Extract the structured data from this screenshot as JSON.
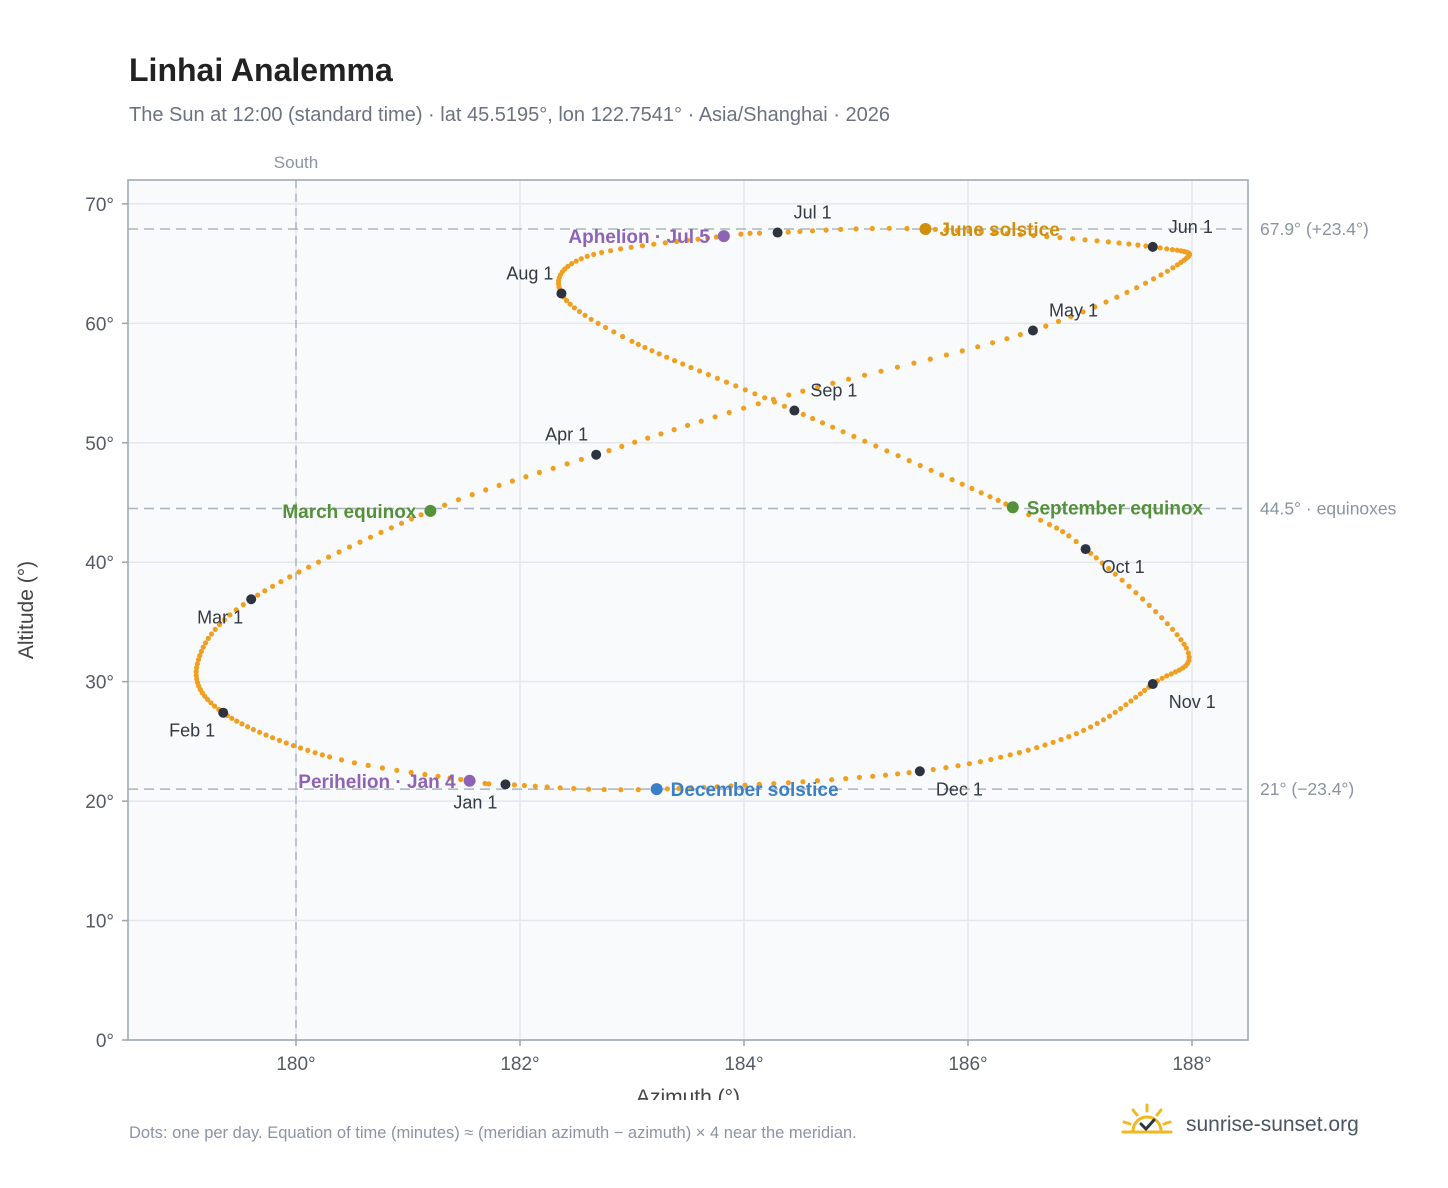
{
  "header": {
    "title": "Linhai Analemma",
    "subtitle": "The Sun at 12:00 (standard time) · lat 45.5195°, lon 122.7541° · Asia/Shanghai · 2026"
  },
  "footer": {
    "note": "Dots: one per day. Equation of time (minutes) ≈ (meridian azimuth − azimuth) × 4 near the meridian.",
    "brand": "sunrise-sunset.org",
    "brand_icon": "sun-logo-icon"
  },
  "chart_data": {
    "type": "scatter",
    "xlabel": "Azimuth (°)",
    "ylabel": "Altitude (°)",
    "xlim": [
      178.5,
      188.5
    ],
    "ylim": [
      0,
      72
    ],
    "xticks": [
      180,
      182,
      184,
      186,
      188
    ],
    "xtick_labels": [
      "180°",
      "182°",
      "184°",
      "186°",
      "188°"
    ],
    "yticks": [
      0,
      10,
      20,
      30,
      40,
      50,
      60,
      70
    ],
    "ytick_labels": [
      "0°",
      "10°",
      "20°",
      "30°",
      "40°",
      "50°",
      "60°",
      "70°"
    ],
    "grid": true,
    "colors": {
      "path": "#f0a020",
      "month_marker": "#2d3440",
      "june_solstice": "#d18f0b",
      "december_solstice": "#3a7fc8",
      "equinox": "#55913a",
      "apsis": "#8e63b6",
      "reference_line": "#aab4bf",
      "plot_bg": "#f8fafc",
      "frame": "#9aa5b1"
    },
    "meridian": {
      "azimuth": 180,
      "label": "South"
    },
    "reference_lines": [
      {
        "altitude": 67.9,
        "label": "67.9° (+23.4°)"
      },
      {
        "altitude": 44.5,
        "label": "44.5° · equinoxes"
      },
      {
        "altitude": 21.0,
        "label": "21° (−23.4°)"
      }
    ],
    "path_anchors": [
      {
        "day": 1,
        "az": 181.87,
        "alt": 21.4
      },
      {
        "day": 4,
        "az": 181.55,
        "alt": 21.7
      },
      {
        "day": 15,
        "az": 180.3,
        "alt": 23.7
      },
      {
        "day": 32,
        "az": 179.35,
        "alt": 27.4
      },
      {
        "day": 46,
        "az": 179.12,
        "alt": 31.5
      },
      {
        "day": 60,
        "az": 179.6,
        "alt": 36.9
      },
      {
        "day": 79,
        "az": 181.2,
        "alt": 44.3
      },
      {
        "day": 91,
        "az": 182.68,
        "alt": 49.0
      },
      {
        "day": 105,
        "az": 184.4,
        "alt": 54.0
      },
      {
        "day": 121,
        "az": 186.58,
        "alt": 59.4
      },
      {
        "day": 136,
        "az": 187.87,
        "alt": 64.9
      },
      {
        "day": 152,
        "az": 187.65,
        "alt": 66.4
      },
      {
        "day": 172,
        "az": 185.62,
        "alt": 67.9
      },
      {
        "day": 182,
        "az": 184.3,
        "alt": 67.6
      },
      {
        "day": 186,
        "az": 183.82,
        "alt": 67.3
      },
      {
        "day": 200,
        "az": 182.6,
        "alt": 65.6
      },
      {
        "day": 213,
        "az": 182.37,
        "alt": 62.5
      },
      {
        "day": 225,
        "az": 183.0,
        "alt": 58.5
      },
      {
        "day": 244,
        "az": 184.45,
        "alt": 52.7
      },
      {
        "day": 266,
        "az": 186.4,
        "alt": 44.6
      },
      {
        "day": 274,
        "az": 187.05,
        "alt": 41.1
      },
      {
        "day": 292,
        "az": 187.95,
        "alt": 32.8
      },
      {
        "day": 305,
        "az": 187.65,
        "alt": 29.8
      },
      {
        "day": 320,
        "az": 186.9,
        "alt": 25.4
      },
      {
        "day": 335,
        "az": 185.57,
        "alt": 22.5
      },
      {
        "day": 355,
        "az": 183.22,
        "alt": 21.0
      },
      {
        "day": 366,
        "az": 181.87,
        "alt": 21.4
      }
    ],
    "month_markers": [
      {
        "label": "Jan 1",
        "az": 181.87,
        "alt": 21.4,
        "anchor": "below-left"
      },
      {
        "label": "Feb 1",
        "az": 179.35,
        "alt": 27.4,
        "anchor": "below-left"
      },
      {
        "label": "Mar 1",
        "az": 179.6,
        "alt": 36.9,
        "anchor": "below-left"
      },
      {
        "label": "Apr 1",
        "az": 182.68,
        "alt": 49.0,
        "anchor": "above-left"
      },
      {
        "label": "May 1",
        "az": 186.58,
        "alt": 59.4,
        "anchor": "above-right"
      },
      {
        "label": "Jun 1",
        "az": 187.65,
        "alt": 66.4,
        "anchor": "above-right"
      },
      {
        "label": "Jul 1",
        "az": 184.3,
        "alt": 67.6,
        "anchor": "above-right"
      },
      {
        "label": "Aug 1",
        "az": 182.37,
        "alt": 62.5,
        "anchor": "above-left"
      },
      {
        "label": "Sep 1",
        "az": 184.45,
        "alt": 52.7,
        "anchor": "above-right"
      },
      {
        "label": "Oct 1",
        "az": 187.05,
        "alt": 41.1,
        "anchor": "below-right"
      },
      {
        "label": "Nov 1",
        "az": 187.65,
        "alt": 29.8,
        "anchor": "below-right"
      },
      {
        "label": "Dec 1",
        "az": 185.57,
        "alt": 22.5,
        "anchor": "below-right"
      }
    ],
    "events": [
      {
        "label": "June solstice",
        "az": 185.62,
        "alt": 67.9,
        "color_key": "june_solstice",
        "anchor": "right"
      },
      {
        "label": "December solstice",
        "az": 183.22,
        "alt": 21.0,
        "color_key": "december_solstice",
        "anchor": "right"
      },
      {
        "label": "March equinox",
        "az": 181.2,
        "alt": 44.3,
        "color_key": "equinox",
        "anchor": "left"
      },
      {
        "label": "September equinox",
        "az": 186.4,
        "alt": 44.6,
        "color_key": "equinox",
        "anchor": "right"
      },
      {
        "label": "Aphelion · Jul 5",
        "az": 183.82,
        "alt": 67.3,
        "color_key": "apsis",
        "anchor": "left"
      },
      {
        "label": "Perihelion · Jan 4",
        "az": 181.55,
        "alt": 21.7,
        "color_key": "apsis",
        "anchor": "left"
      }
    ]
  }
}
